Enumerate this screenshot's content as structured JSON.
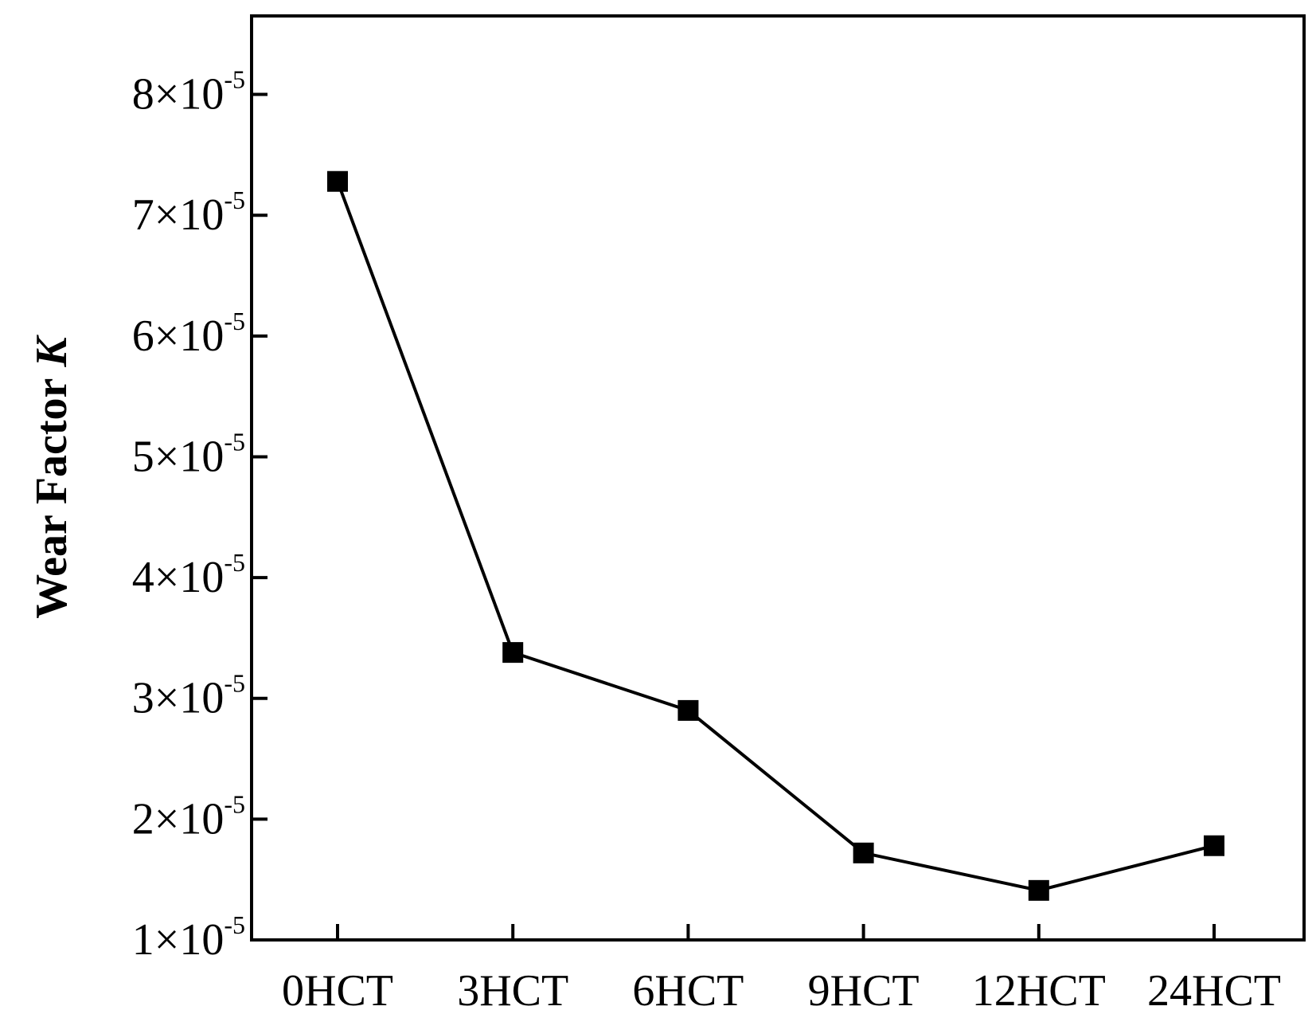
{
  "chart_data": {
    "type": "line",
    "title": "",
    "xlabel": "",
    "ylabel": "Wear Factor",
    "ylabel_italic_symbol": "K",
    "categories": [
      "0HCT",
      "3HCT",
      "6HCT",
      "9HCT",
      "12HCT",
      "24HCT"
    ],
    "series": [
      {
        "values": [
          7.28e-05,
          3.38e-05,
          2.9e-05,
          1.72e-05,
          1.41e-05,
          1.78e-05
        ],
        "marker": "square",
        "color": "#000000"
      }
    ],
    "yticks": [
      {
        "value": 1e-05,
        "mantissa": "1×10",
        "exponent": "-5"
      },
      {
        "value": 2e-05,
        "mantissa": "2×10",
        "exponent": "-5"
      },
      {
        "value": 3e-05,
        "mantissa": "3×10",
        "exponent": "-5"
      },
      {
        "value": 4e-05,
        "mantissa": "4×10",
        "exponent": "-5"
      },
      {
        "value": 5e-05,
        "mantissa": "5×10",
        "exponent": "-5"
      },
      {
        "value": 6e-05,
        "mantissa": "6×10",
        "exponent": "-5"
      },
      {
        "value": 7e-05,
        "mantissa": "7×10",
        "exponent": "-5"
      },
      {
        "value": 8e-05,
        "mantissa": "8×10",
        "exponent": "-5"
      }
    ],
    "ylim": [
      1e-05,
      8.65e-05
    ],
    "grid": false,
    "legend": "none"
  }
}
